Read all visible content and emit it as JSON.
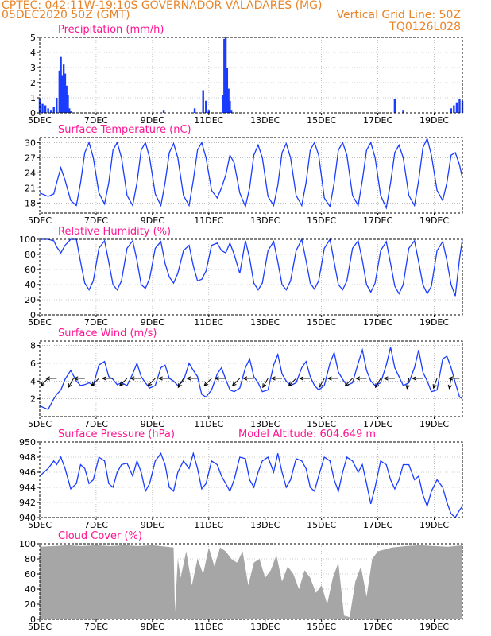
{
  "header": {
    "line1": "CPTEC:   042:11W-19:10S   GOVERNADOR VALADARES (MG)",
    "line2": "05DEC2020 50Z (GMT)",
    "grid_note": "Vertical Grid Line: 50Z",
    "code": "TQ0126L028"
  },
  "colors": {
    "header": "#e8842a",
    "title": "#ff1493",
    "series": "#1a3cff",
    "cloud": "#a6a6a6"
  },
  "chart_data": [
    {
      "id": "precip",
      "type": "bar",
      "title": "Precipitation (mm/h)",
      "ylim": [
        0,
        5
      ],
      "yticks": [
        0,
        1,
        2,
        3,
        4,
        5
      ],
      "xlim": [
        5,
        20
      ],
      "xticks": [
        "5DEC",
        "7DEC",
        "9DEC",
        "11DEC",
        "13DEC",
        "15DEC",
        "17DEC",
        "19DEC"
      ],
      "x": [
        5.0,
        5.1,
        5.2,
        5.3,
        5.4,
        5.5,
        5.6,
        5.7,
        5.75,
        5.8,
        5.85,
        5.9,
        5.95,
        6.0,
        6.05,
        6.1,
        9.4,
        10.5,
        10.8,
        10.9,
        11.0,
        11.5,
        11.55,
        11.6,
        11.65,
        11.7,
        11.75,
        11.8,
        17.6,
        17.9,
        19.6,
        19.7,
        19.8,
        19.9,
        20.0
      ],
      "values": [
        0.9,
        0.6,
        0.5,
        0.3,
        0.2,
        0.4,
        1.0,
        2.8,
        3.7,
        2.5,
        3.2,
        2.6,
        1.8,
        1.2,
        0.3,
        0.1,
        0.2,
        0.3,
        1.5,
        0.8,
        0.2,
        1.2,
        4.9,
        5.0,
        3.0,
        1.6,
        0.8,
        0.2,
        0.9,
        0.2,
        0.3,
        0.5,
        0.7,
        0.9,
        0.8
      ]
    },
    {
      "id": "temp",
      "type": "line",
      "title": "Surface Temperature (nC)",
      "ylim": [
        16,
        31
      ],
      "yticks": [
        18,
        21,
        24,
        27,
        30
      ],
      "xlim": [
        5,
        20
      ],
      "xticks": [
        "5DEC",
        "7DEC",
        "9DEC",
        "11DEC",
        "13DEC",
        "15DEC",
        "17DEC",
        "19DEC"
      ],
      "x": [
        5.0,
        5.3,
        5.5,
        5.6,
        5.75,
        5.9,
        6.1,
        6.3,
        6.45,
        6.6,
        6.75,
        6.9,
        7.1,
        7.3,
        7.45,
        7.6,
        7.75,
        7.9,
        8.1,
        8.3,
        8.45,
        8.6,
        8.75,
        8.9,
        9.1,
        9.3,
        9.45,
        9.6,
        9.75,
        9.9,
        10.1,
        10.3,
        10.45,
        10.6,
        10.75,
        10.9,
        11.1,
        11.3,
        11.45,
        11.6,
        11.75,
        11.9,
        12.1,
        12.3,
        12.45,
        12.6,
        12.75,
        12.9,
        13.1,
        13.3,
        13.45,
        13.6,
        13.75,
        13.9,
        14.1,
        14.3,
        14.45,
        14.6,
        14.75,
        14.9,
        15.1,
        15.3,
        15.45,
        15.6,
        15.75,
        15.9,
        16.1,
        16.3,
        16.45,
        16.6,
        16.75,
        16.9,
        17.1,
        17.3,
        17.45,
        17.6,
        17.75,
        17.9,
        18.1,
        18.3,
        18.45,
        18.6,
        18.75,
        18.9,
        19.1,
        19.3,
        19.45,
        19.6,
        19.75,
        19.9,
        20.0
      ],
      "values": [
        20.0,
        19.3,
        19.8,
        22.0,
        25.0,
        22.5,
        18.5,
        17.5,
        22.0,
        28.0,
        30.0,
        27.0,
        20.0,
        17.8,
        22.0,
        28.5,
        30.0,
        27.0,
        19.5,
        17.5,
        22.0,
        28.5,
        30.0,
        27.0,
        19.8,
        17.5,
        22.0,
        28.0,
        29.8,
        27.0,
        19.5,
        17.5,
        22.5,
        28.5,
        30.0,
        27.0,
        20.5,
        19.0,
        21.0,
        23.5,
        27.5,
        26.0,
        20.0,
        17.3,
        21.0,
        27.5,
        29.5,
        27.0,
        19.3,
        17.5,
        21.5,
        28.0,
        29.8,
        27.0,
        19.5,
        17.5,
        22.0,
        28.5,
        30.0,
        27.5,
        19.0,
        17.3,
        22.0,
        28.5,
        30.0,
        27.5,
        19.5,
        17.5,
        22.5,
        28.5,
        30.0,
        27.0,
        19.5,
        17.0,
        22.0,
        28.0,
        29.5,
        27.0,
        19.5,
        17.5,
        22.5,
        29.0,
        30.8,
        27.5,
        20.5,
        18.5,
        22.0,
        27.5,
        28.0,
        25.5,
        23.0
      ]
    },
    {
      "id": "rh",
      "type": "line",
      "title": "Relative Humidity (%)",
      "ylim": [
        0,
        100
      ],
      "yticks": [
        0,
        20,
        40,
        60,
        80,
        100
      ],
      "xlim": [
        5,
        20
      ],
      "xticks": [
        "5DEC",
        "7DEC",
        "9DEC",
        "11DEC",
        "13DEC",
        "15DEC",
        "17DEC",
        "19DEC"
      ],
      "x": [
        5.0,
        5.3,
        5.5,
        5.6,
        5.75,
        5.9,
        6.1,
        6.3,
        6.45,
        6.6,
        6.75,
        6.9,
        7.1,
        7.3,
        7.45,
        7.6,
        7.75,
        7.9,
        8.1,
        8.3,
        8.45,
        8.6,
        8.75,
        8.9,
        9.1,
        9.3,
        9.45,
        9.6,
        9.75,
        9.9,
        10.1,
        10.3,
        10.45,
        10.6,
        10.75,
        10.9,
        11.1,
        11.3,
        11.45,
        11.6,
        11.75,
        11.9,
        12.1,
        12.3,
        12.45,
        12.6,
        12.75,
        12.9,
        13.1,
        13.3,
        13.45,
        13.6,
        13.75,
        13.9,
        14.1,
        14.3,
        14.45,
        14.6,
        14.75,
        14.9,
        15.1,
        15.3,
        15.45,
        15.6,
        15.75,
        15.9,
        16.1,
        16.3,
        16.45,
        16.6,
        16.75,
        16.9,
        17.1,
        17.3,
        17.45,
        17.6,
        17.75,
        17.9,
        18.1,
        18.3,
        18.45,
        18.6,
        18.75,
        18.9,
        19.1,
        19.3,
        19.45,
        19.6,
        19.75,
        19.9,
        20.0
      ],
      "values": [
        100,
        100,
        98,
        90,
        82,
        92,
        100,
        100,
        70,
        42,
        33,
        45,
        88,
        98,
        70,
        40,
        33,
        45,
        88,
        98,
        72,
        40,
        35,
        48,
        88,
        97,
        68,
        50,
        42,
        55,
        85,
        92,
        65,
        45,
        47,
        58,
        92,
        95,
        85,
        82,
        95,
        80,
        55,
        98,
        75,
        42,
        33,
        42,
        85,
        97,
        70,
        40,
        33,
        45,
        85,
        100,
        72,
        42,
        34,
        45,
        88,
        100,
        70,
        40,
        33,
        45,
        88,
        98,
        72,
        40,
        30,
        42,
        85,
        97,
        68,
        38,
        28,
        40,
        88,
        98,
        70,
        40,
        28,
        38,
        85,
        97,
        72,
        40,
        25,
        75,
        100
      ]
    },
    {
      "id": "wind",
      "type": "line",
      "title": "Surface Wind (m/s)",
      "ylim": [
        0,
        8.5
      ],
      "yticks": [
        2,
        4,
        6,
        8
      ],
      "xlim": [
        5,
        20
      ],
      "xticks": [
        "5DEC",
        "7DEC",
        "9DEC",
        "11DEC",
        "13DEC",
        "15DEC",
        "17DEC",
        "19DEC"
      ],
      "x": [
        5.0,
        5.3,
        5.5,
        5.6,
        5.75,
        5.9,
        6.1,
        6.3,
        6.45,
        6.6,
        6.75,
        6.9,
        7.1,
        7.3,
        7.45,
        7.6,
        7.75,
        7.9,
        8.1,
        8.3,
        8.45,
        8.6,
        8.75,
        8.9,
        9.1,
        9.3,
        9.45,
        9.6,
        9.75,
        9.9,
        10.1,
        10.3,
        10.45,
        10.6,
        10.75,
        10.9,
        11.1,
        11.3,
        11.45,
        11.6,
        11.75,
        11.9,
        12.1,
        12.3,
        12.45,
        12.6,
        12.75,
        12.9,
        13.1,
        13.3,
        13.45,
        13.6,
        13.75,
        13.9,
        14.1,
        14.3,
        14.45,
        14.6,
        14.75,
        14.9,
        15.1,
        15.3,
        15.45,
        15.6,
        15.75,
        15.9,
        16.1,
        16.3,
        16.45,
        16.6,
        16.75,
        16.9,
        17.1,
        17.3,
        17.45,
        17.6,
        17.75,
        17.9,
        18.1,
        18.3,
        18.45,
        18.6,
        18.75,
        18.9,
        19.1,
        19.3,
        19.45,
        19.6,
        19.75,
        19.9,
        20.0
      ],
      "values": [
        1.2,
        0.8,
        2.0,
        2.5,
        3.0,
        4.2,
        5.2,
        4.0,
        3.5,
        3.6,
        3.8,
        3.5,
        5.8,
        6.2,
        4.5,
        4.2,
        3.6,
        3.8,
        3.5,
        4.8,
        6.0,
        4.5,
        3.8,
        3.2,
        3.5,
        5.5,
        5.8,
        4.3,
        4.0,
        3.5,
        4.0,
        6.0,
        5.2,
        4.5,
        2.5,
        2.2,
        3.0,
        4.8,
        5.5,
        4.2,
        3.0,
        2.8,
        3.2,
        5.5,
        6.5,
        4.5,
        3.8,
        2.8,
        3.0,
        5.8,
        7.0,
        4.8,
        4.0,
        3.5,
        3.8,
        5.5,
        6.2,
        4.5,
        3.5,
        3.0,
        3.5,
        6.0,
        7.2,
        5.0,
        4.2,
        3.5,
        3.8,
        6.0,
        7.5,
        5.2,
        4.0,
        3.5,
        3.8,
        5.8,
        7.8,
        5.5,
        4.5,
        3.5,
        3.8,
        5.5,
        7.5,
        5.0,
        4.0,
        2.8,
        3.0,
        6.5,
        6.8,
        5.5,
        3.8,
        2.2,
        2.0
      ],
      "vector_x": [
        5.3,
        5.6,
        6.2,
        6.6,
        7.1,
        7.6,
        8.1,
        8.6,
        9.1,
        9.6,
        10.1,
        10.6,
        11.1,
        11.6,
        12.1,
        12.6,
        13.1,
        13.6,
        14.1,
        14.6,
        15.1,
        15.6,
        16.1,
        16.6,
        17.1,
        17.6,
        18.1,
        18.6,
        19.1,
        19.6,
        19.9
      ],
      "vector_angles": [
        225,
        180,
        240,
        180,
        225,
        180,
        225,
        180,
        225,
        180,
        240,
        180,
        225,
        180,
        225,
        180,
        240,
        180,
        225,
        180,
        240,
        180,
        225,
        180,
        240,
        180,
        260,
        180,
        250,
        260,
        180
      ]
    },
    {
      "id": "pres",
      "type": "line",
      "title": "Surface Pressure (hPa)",
      "annotation": "Model Altitude: 604.649  m",
      "ylim": [
        940,
        950
      ],
      "yticks": [
        940,
        942,
        944,
        946,
        948,
        950
      ],
      "xlim": [
        5,
        20
      ],
      "xticks": [
        "5DEC",
        "7DEC",
        "9DEC",
        "11DEC",
        "13DEC",
        "15DEC",
        "17DEC",
        "19DEC"
      ],
      "x": [
        5.0,
        5.3,
        5.5,
        5.6,
        5.75,
        5.9,
        6.1,
        6.3,
        6.45,
        6.6,
        6.75,
        6.9,
        7.1,
        7.3,
        7.45,
        7.6,
        7.75,
        7.9,
        8.1,
        8.3,
        8.45,
        8.6,
        8.75,
        8.9,
        9.1,
        9.3,
        9.45,
        9.6,
        9.75,
        9.9,
        10.1,
        10.3,
        10.45,
        10.6,
        10.75,
        10.9,
        11.1,
        11.3,
        11.45,
        11.6,
        11.75,
        11.9,
        12.1,
        12.3,
        12.45,
        12.6,
        12.75,
        12.9,
        13.1,
        13.3,
        13.45,
        13.6,
        13.75,
        13.9,
        14.1,
        14.3,
        14.45,
        14.6,
        14.75,
        14.9,
        15.1,
        15.3,
        15.45,
        15.6,
        15.75,
        15.9,
        16.1,
        16.3,
        16.45,
        16.6,
        16.75,
        16.9,
        17.1,
        17.3,
        17.45,
        17.6,
        17.75,
        17.9,
        18.1,
        18.3,
        18.45,
        18.6,
        18.75,
        18.9,
        19.1,
        19.3,
        19.45,
        19.6,
        19.75,
        19.9,
        20.0
      ],
      "values": [
        945.5,
        946.5,
        947.5,
        947.0,
        948.0,
        946.5,
        943.8,
        944.5,
        947.0,
        946.5,
        944.5,
        945.0,
        948.0,
        947.5,
        944.5,
        944.0,
        946.0,
        947.0,
        947.2,
        945.5,
        947.5,
        946.0,
        943.5,
        944.5,
        947.5,
        948.5,
        947.0,
        944.0,
        943.5,
        946.0,
        947.5,
        946.5,
        948.5,
        946.5,
        943.8,
        944.5,
        947.5,
        947.0,
        945.5,
        944.5,
        943.5,
        945.0,
        948.0,
        947.8,
        945.0,
        944.0,
        946.0,
        947.5,
        948.0,
        946.0,
        948.5,
        946.0,
        944.0,
        945.0,
        947.8,
        947.5,
        946.5,
        944.0,
        943.5,
        945.5,
        948.0,
        947.5,
        945.0,
        943.5,
        946.0,
        948.0,
        947.5,
        946.0,
        947.0,
        944.5,
        941.8,
        944.0,
        947.5,
        947.0,
        945.0,
        943.8,
        945.0,
        947.0,
        947.0,
        945.0,
        945.5,
        943.0,
        941.5,
        943.5,
        945.0,
        944.0,
        942.0,
        940.5,
        939.5,
        941.0,
        941.5
      ]
    },
    {
      "id": "cloud",
      "type": "area",
      "title": "Cloud Cover (%)",
      "ylim": [
        0,
        100
      ],
      "yticks": [
        0,
        20,
        40,
        60,
        80,
        100
      ],
      "xlim": [
        5,
        20
      ],
      "xticks": [
        "5DEC",
        "7DEC",
        "9DEC",
        "11DEC",
        "13DEC",
        "15DEC",
        "17DEC",
        "19DEC"
      ],
      "x": [
        5.0,
        5.5,
        6.0,
        6.5,
        7.0,
        7.5,
        8.0,
        8.5,
        9.0,
        9.5,
        9.75,
        9.8,
        9.9,
        10.0,
        10.2,
        10.4,
        10.6,
        10.8,
        11.0,
        11.2,
        11.4,
        11.6,
        11.8,
        12.0,
        12.2,
        12.4,
        12.6,
        12.8,
        13.0,
        13.2,
        13.4,
        13.6,
        13.8,
        14.0,
        14.2,
        14.4,
        14.6,
        14.8,
        15.0,
        15.2,
        15.4,
        15.6,
        15.8,
        16.0,
        16.2,
        16.4,
        16.6,
        16.8,
        17.0,
        17.5,
        18.0,
        18.5,
        19.0,
        19.5,
        20.0
      ],
      "values": [
        96,
        97,
        98,
        97,
        98,
        97,
        98,
        97,
        98,
        96,
        95,
        10,
        80,
        55,
        90,
        45,
        80,
        60,
        95,
        70,
        95,
        90,
        80,
        75,
        90,
        45,
        75,
        80,
        55,
        65,
        85,
        50,
        70,
        60,
        40,
        65,
        55,
        35,
        45,
        20,
        55,
        75,
        5,
        3,
        50,
        70,
        30,
        80,
        90,
        95,
        97,
        98,
        97,
        96,
        98
      ]
    }
  ]
}
